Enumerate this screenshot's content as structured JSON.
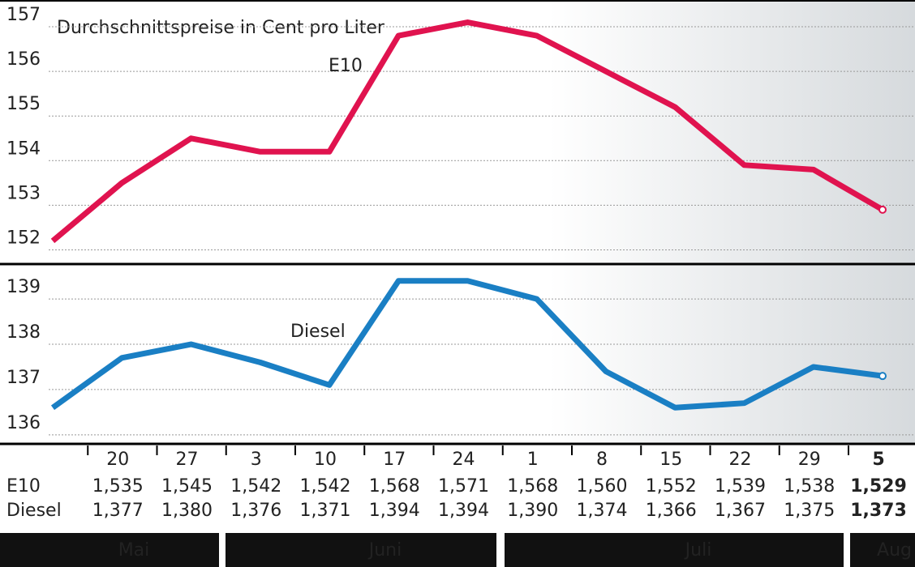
{
  "chart_data": {
    "type": "line",
    "title": "Durchschnittspreise in Cent pro Liter",
    "categories": [
      null,
      "20",
      "27",
      "3",
      "10",
      "17",
      "24",
      "1",
      "8",
      "15",
      "22",
      "29",
      "5"
    ],
    "months": [
      "Mai",
      "Juni",
      "Juli",
      "Aug"
    ],
    "series": [
      {
        "name": "E10",
        "color": "#e0134f",
        "axis": "y",
        "values": [
          152.2,
          153.5,
          154.5,
          154.2,
          154.2,
          156.8,
          157.1,
          156.8,
          156.0,
          155.2,
          153.9,
          153.8,
          152.9
        ],
        "value_labels": [
          null,
          "1,535",
          "1,545",
          "1,542",
          "1,542",
          "1,568",
          "1,571",
          "1,568",
          "1,560",
          "1,552",
          "1,539",
          "1,538",
          "1,529"
        ]
      },
      {
        "name": "Diesel",
        "color": "#1a7fc4",
        "axis": "y2",
        "values": [
          136.6,
          137.7,
          138.0,
          137.6,
          137.1,
          139.4,
          139.4,
          139.0,
          137.4,
          136.6,
          136.7,
          137.5,
          137.3
        ],
        "value_labels": [
          null,
          "1,377",
          "1,380",
          "1,376",
          "1,371",
          "1,394",
          "1,394",
          "1,390",
          "1,374",
          "1,366",
          "1,367",
          "1,375",
          "1,373"
        ]
      }
    ],
    "ylim": [
      151.7,
      157.6
    ],
    "yticks": [
      152,
      153,
      154,
      155,
      156,
      157
    ],
    "y2lim": [
      135.8,
      139.7
    ],
    "y2ticks": [
      136,
      137,
      138,
      139
    ],
    "grid": true
  }
}
